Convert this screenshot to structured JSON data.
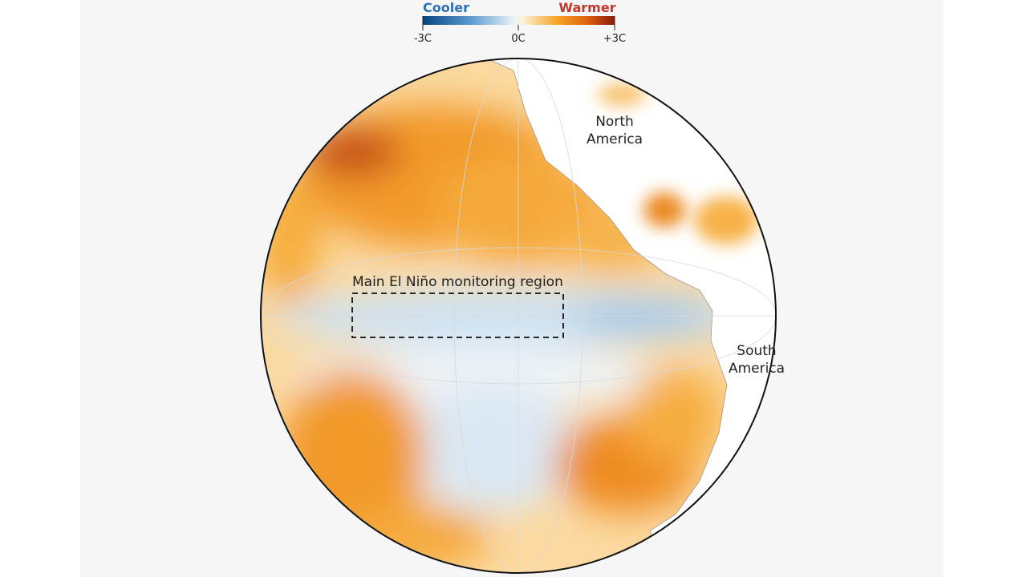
{
  "legend": {
    "cooler": "Cooler",
    "warmer": "Warmer",
    "ticks": [
      "-3C",
      "0C",
      "+3C"
    ]
  },
  "map": {
    "north_america": [
      "North",
      "America"
    ],
    "south_america": [
      "South",
      "America"
    ],
    "region": "Main El Niño monitoring region"
  }
}
